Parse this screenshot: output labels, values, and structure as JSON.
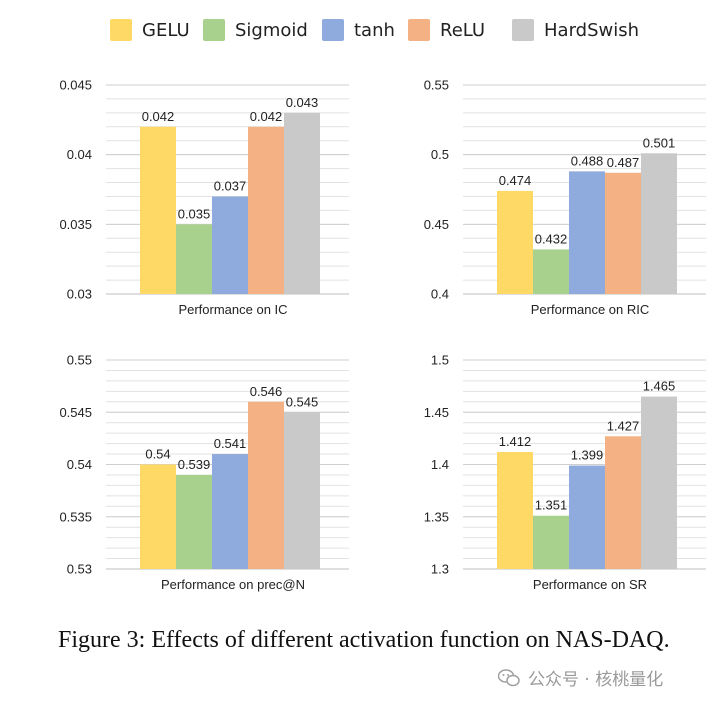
{
  "legend": [
    {
      "name": "GELU",
      "color": "#FFD966"
    },
    {
      "name": "Sigmoid",
      "color": "#A9D18E"
    },
    {
      "name": "tanh",
      "color": "#8FAADC"
    },
    {
      "name": "ReLU",
      "color": "#F4B183"
    },
    {
      "name": "HardSwish",
      "color": "#C9C9C9"
    }
  ],
  "chart_data": [
    {
      "type": "bar",
      "title": "Performance on IC",
      "xlabel": "Performance on IC",
      "categories": [
        "GELU",
        "Sigmoid",
        "tanh",
        "ReLU",
        "HardSwish"
      ],
      "values": [
        0.042,
        0.035,
        0.037,
        0.042,
        0.043
      ],
      "value_labels": [
        "0.042",
        "0.035",
        "0.037",
        "0.042",
        "0.043"
      ],
      "ylim": [
        0.03,
        0.045
      ],
      "yticks": [
        "0.03",
        "0.035",
        "0.04",
        "0.045"
      ],
      "ytick_values": [
        0.03,
        0.035,
        0.04,
        0.045
      ],
      "grid": true,
      "minor_step": 0.001
    },
    {
      "type": "bar",
      "title": "Performance on RIC",
      "xlabel": "Performance on RIC",
      "categories": [
        "GELU",
        "Sigmoid",
        "tanh",
        "ReLU",
        "HardSwish"
      ],
      "values": [
        0.474,
        0.432,
        0.488,
        0.487,
        0.501
      ],
      "value_labels": [
        "0.474",
        "0.432",
        "0.488",
        "0.487",
        "0.501"
      ],
      "ylim": [
        0.4,
        0.55
      ],
      "yticks": [
        "0.4",
        "0.45",
        "0.5",
        "0.55"
      ],
      "ytick_values": [
        0.4,
        0.45,
        0.5,
        0.55
      ],
      "grid": true,
      "minor_step": 0.01
    },
    {
      "type": "bar",
      "title": "Performance on prec@N",
      "xlabel": "Performance on prec@N",
      "categories": [
        "GELU",
        "Sigmoid",
        "tanh",
        "ReLU",
        "HardSwish"
      ],
      "values": [
        0.54,
        0.539,
        0.541,
        0.546,
        0.545
      ],
      "value_labels": [
        "0.54",
        "0.539",
        "0.541",
        "0.546",
        "0.545"
      ],
      "ylim": [
        0.53,
        0.55
      ],
      "yticks": [
        "0.53",
        "0.535",
        "0.54",
        "0.545",
        "0.55"
      ],
      "ytick_values": [
        0.53,
        0.535,
        0.54,
        0.545,
        0.55
      ],
      "grid": true,
      "minor_step": 0.001
    },
    {
      "type": "bar",
      "title": "Performance on SR",
      "xlabel": "Performance on SR",
      "categories": [
        "GELU",
        "Sigmoid",
        "tanh",
        "ReLU",
        "HardSwish"
      ],
      "values": [
        1.412,
        1.351,
        1.399,
        1.427,
        1.465
      ],
      "value_labels": [
        "1.412",
        "1.351",
        "1.399",
        "1.427",
        "1.465"
      ],
      "ylim": [
        1.3,
        1.5
      ],
      "yticks": [
        "1.3",
        "1.35",
        "1.4",
        "1.45",
        "1.5"
      ],
      "ytick_values": [
        1.3,
        1.35,
        1.4,
        1.45,
        1.5
      ],
      "grid": true,
      "minor_step": 0.01
    }
  ],
  "caption": "Figure 3: Effects of different activation function on NAS-DAQ.",
  "watermark": "公众号 · 核桃量化"
}
